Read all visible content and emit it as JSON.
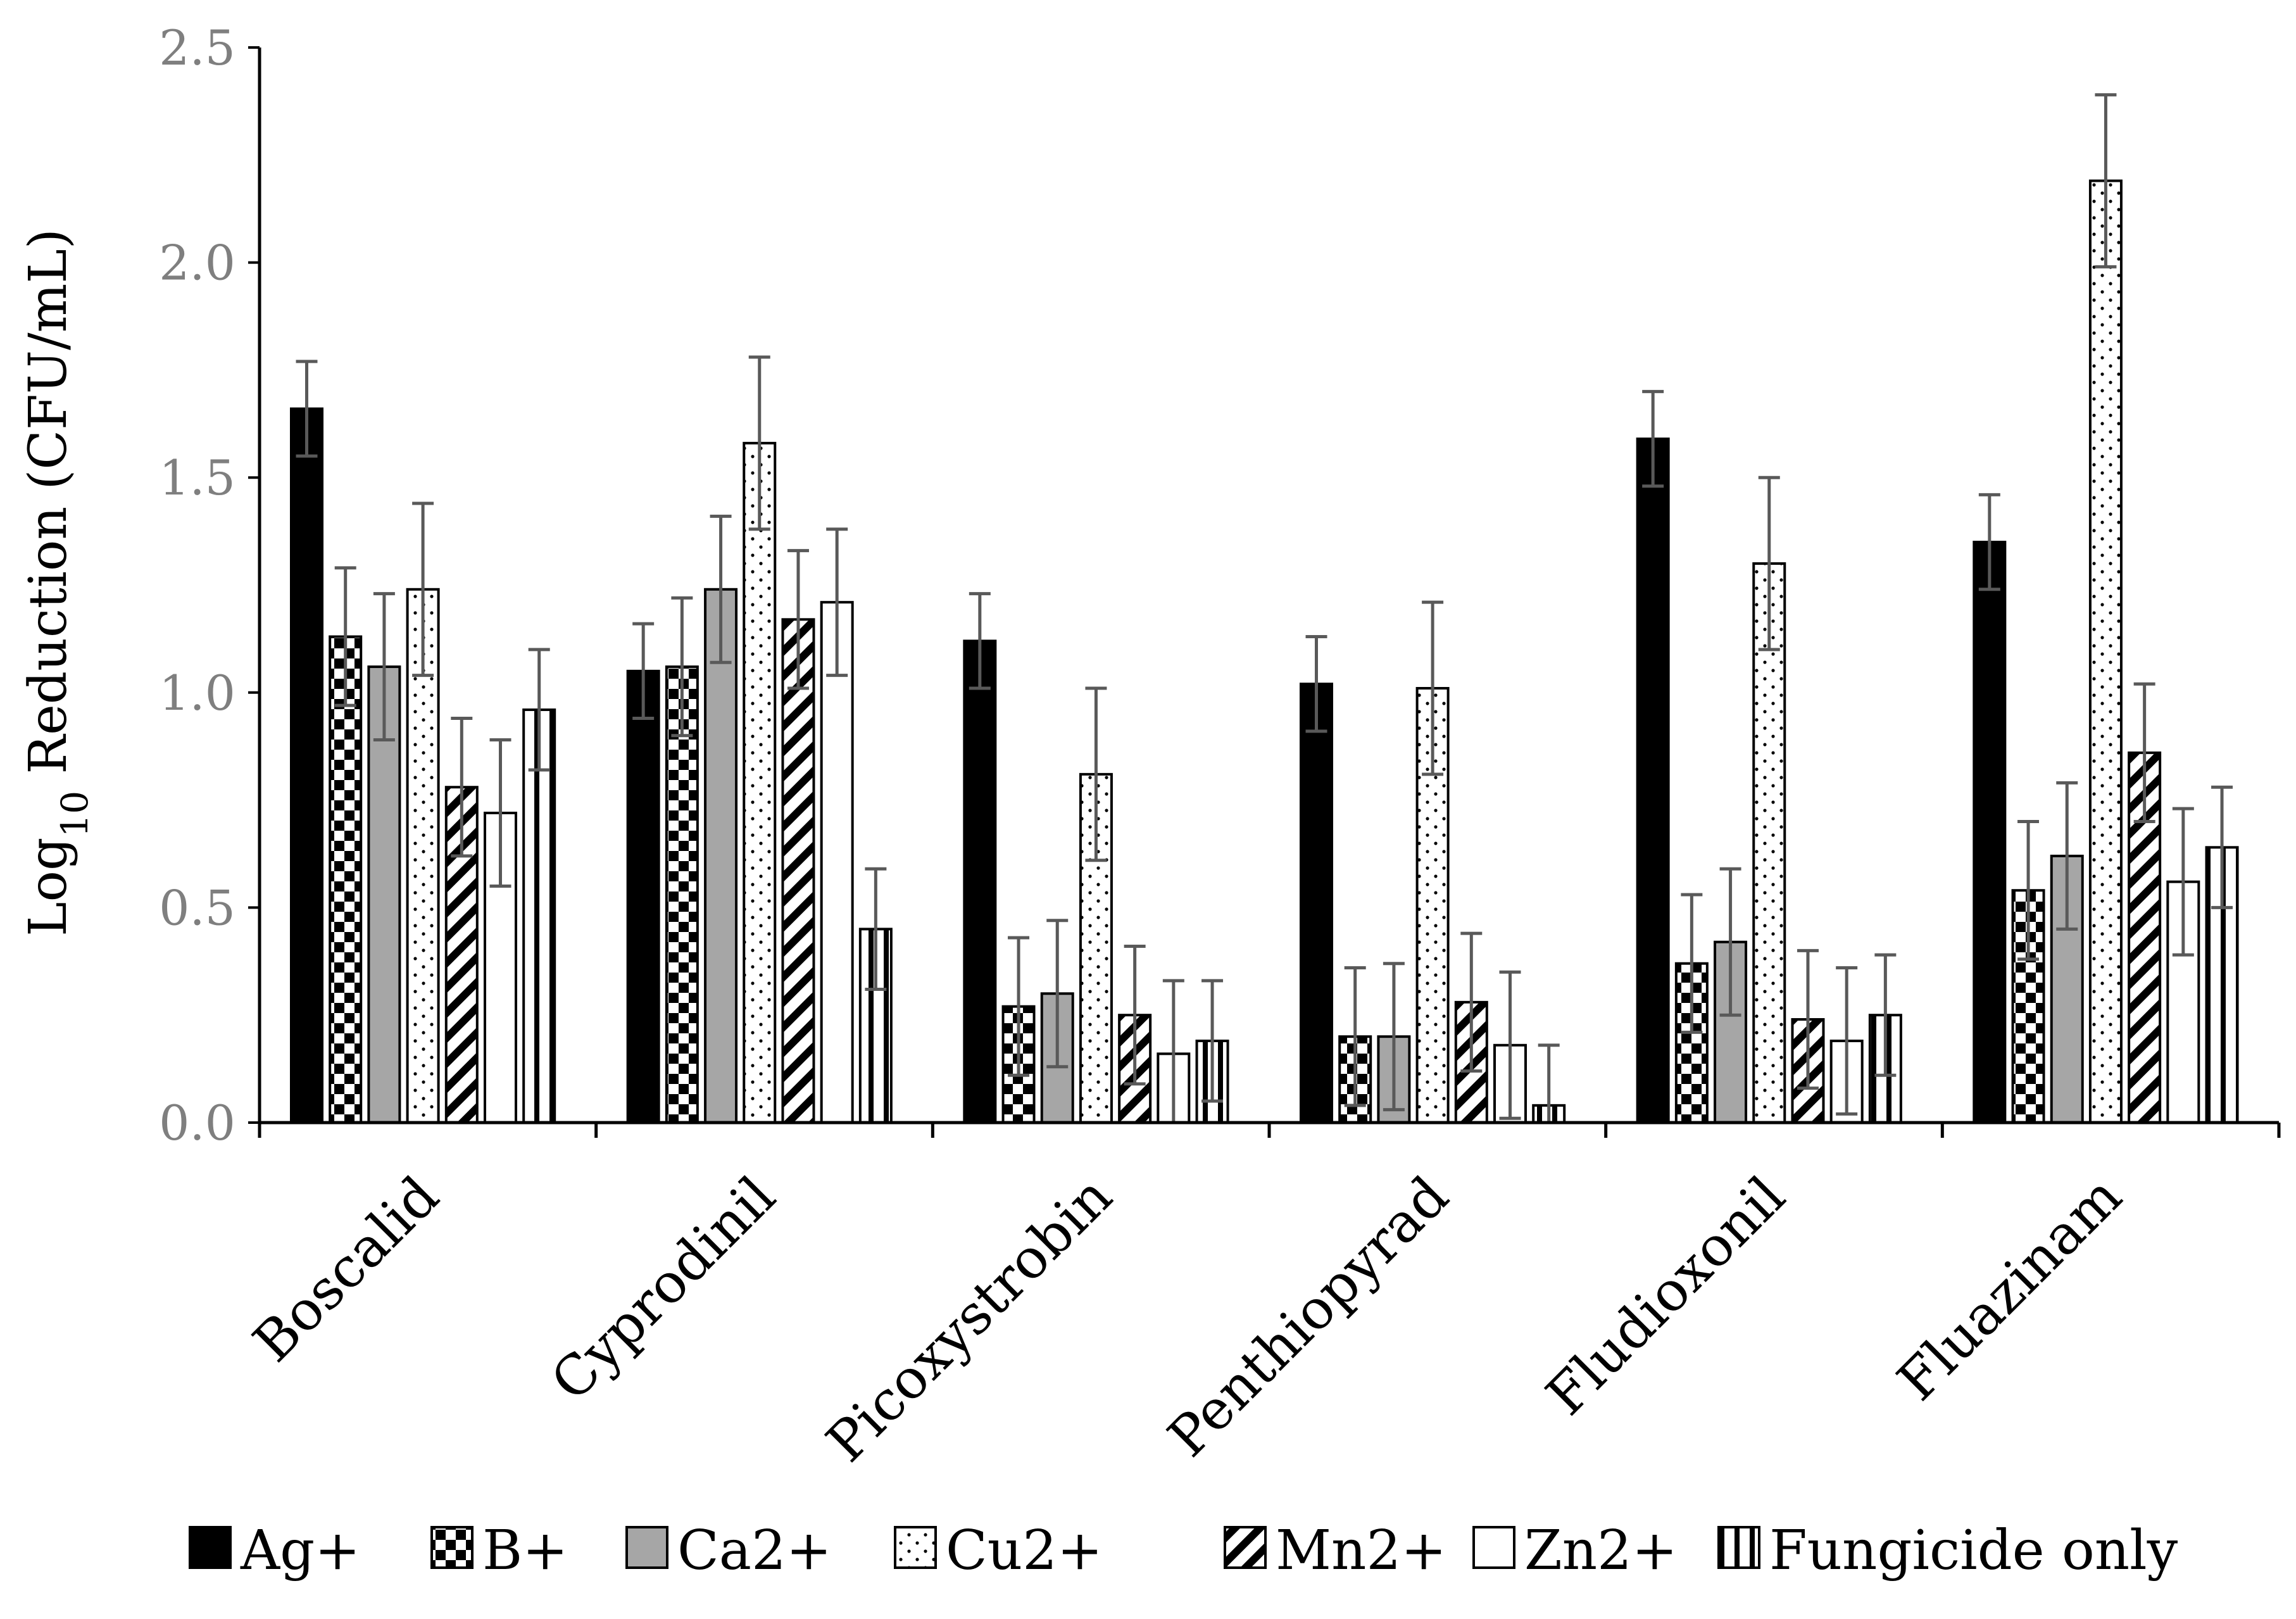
{
  "chart_data": {
    "type": "bar",
    "title": "",
    "xlabel": "",
    "ylabel": {
      "base": "Log",
      "subscript": "10",
      "rest": " Reduction (CFU/mL)"
    },
    "ylim": [
      0,
      2.5
    ],
    "y_ticks": [
      "0.0",
      "0.5",
      "1.0",
      "1.5",
      "2.0",
      "2.5"
    ],
    "grid": false,
    "legend_position": "bottom",
    "categories": [
      "Boscalid",
      "Cyprodinil",
      "Picoxystrobin",
      "Penthiopyrad",
      "Fludioxonil",
      "Fluazinam"
    ],
    "series": [
      {
        "name": "Ag+",
        "pattern": "solid-black",
        "values": [
          1.66,
          1.05,
          1.12,
          1.02,
          1.59,
          1.35
        ],
        "errors": [
          0.11,
          0.11,
          0.11,
          0.11,
          0.11,
          0.11
        ]
      },
      {
        "name": "B+",
        "pattern": "checkerboard",
        "values": [
          1.13,
          1.06,
          0.27,
          0.2,
          0.37,
          0.54
        ],
        "errors": [
          0.16,
          0.16,
          0.16,
          0.16,
          0.16,
          0.16
        ]
      },
      {
        "name": "Ca2+",
        "pattern": "solid-gray",
        "values": [
          1.06,
          1.24,
          0.3,
          0.2,
          0.42,
          0.62
        ],
        "errors": [
          0.17,
          0.17,
          0.17,
          0.17,
          0.17,
          0.17
        ]
      },
      {
        "name": "Cu2+",
        "pattern": "dots",
        "values": [
          1.24,
          1.58,
          0.81,
          1.01,
          1.3,
          2.19
        ],
        "errors": [
          0.2,
          0.2,
          0.2,
          0.2,
          0.2,
          0.2
        ]
      },
      {
        "name": "Mn2+",
        "pattern": "diagonal-stripes",
        "values": [
          0.78,
          1.17,
          0.25,
          0.28,
          0.24,
          0.86
        ],
        "errors": [
          0.16,
          0.16,
          0.16,
          0.16,
          0.16,
          0.16
        ]
      },
      {
        "name": "Zn2+",
        "pattern": "white",
        "values": [
          0.72,
          1.21,
          0.16,
          0.18,
          0.19,
          0.56
        ],
        "errors": [
          0.17,
          0.17,
          0.17,
          0.17,
          0.17,
          0.17
        ]
      },
      {
        "name": "Fungicide only",
        "pattern": "vertical-stripes",
        "values": [
          0.96,
          0.45,
          0.19,
          0.04,
          0.25,
          0.64
        ],
        "errors": [
          0.14,
          0.14,
          0.14,
          0.14,
          0.14,
          0.14
        ]
      }
    ],
    "colors": {
      "axis": "#000000",
      "tick_text": "#7f7f7f",
      "error_bar": "#595959",
      "black": "#000000",
      "gray": "#a6a6a6",
      "white": "#ffffff"
    }
  }
}
